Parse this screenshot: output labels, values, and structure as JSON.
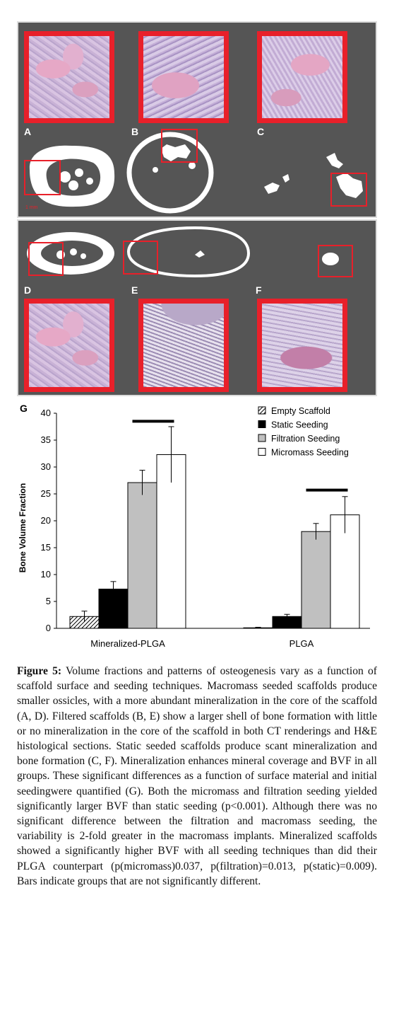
{
  "panels": {
    "letters": [
      "A",
      "B",
      "C",
      "D",
      "E",
      "F"
    ],
    "scale_text": "1 mm"
  },
  "chart_data": {
    "type": "bar",
    "panel_label": "G",
    "categories": [
      "Mineralized-PLGA",
      "PLGA"
    ],
    "ylabel": "Bone Volume Fraction",
    "xlabel": "",
    "ylim": [
      0,
      40
    ],
    "yticks": [
      0,
      5,
      10,
      15,
      20,
      25,
      30,
      35,
      40
    ],
    "grid": false,
    "legend_position": "top-right",
    "series": [
      {
        "name": "Empty Scaffold",
        "values": [
          2.2,
          0.1
        ],
        "errors": [
          1.0,
          0.1
        ],
        "fill": "hatched"
      },
      {
        "name": "Static Seeding",
        "values": [
          7.3,
          2.2
        ],
        "errors": [
          1.4,
          0.4
        ],
        "fill": "#000000"
      },
      {
        "name": "Filtration Seeding",
        "values": [
          27.1,
          18.0
        ],
        "errors": [
          2.3,
          1.5
        ],
        "fill": "#c0c0c0"
      },
      {
        "name": "Micromass Seeding",
        "values": [
          32.3,
          21.1
        ],
        "errors": [
          5.2,
          3.4
        ],
        "fill": "#ffffff"
      }
    ],
    "significance_bars": [
      {
        "category": "Mineralized-PLGA",
        "from_series": 2,
        "to_series": 3,
        "level": 38.5
      },
      {
        "category": "PLGA",
        "from_series": 2,
        "to_series": 3,
        "level": 25.7
      }
    ]
  },
  "caption": {
    "label": "Figure 5:",
    "text": "Volume fractions and patterns of osteogenesis vary as a function of scaffold surface and seeding techniques. Macromass seeded scaffolds produce smaller ossicles, with a more abundant mineralization in the core of the scaffold (A, D). Filtered scaffolds (B, E) show a larger shell of bone formation with little or no mineralization in the core of the scaffold in both CT renderings and H&E histological sections. Static seeded scaffolds produce scant mineralization and bone formation (C, F). Mineralization enhances mineral coverage and BVF in all groups. These significant differences as a function of surface material and initial seedingwere quantified (G). Both the micromass and filtration seeding yielded significantly larger BVF than static seeding (p<0.001). Although there was no significant difference between the filtration and macromass seeding, the variability is 2-fold greater in the macromass implants. Mineralized scaffolds showed a significantly higher BVF with all seeding techniques than did their PLGA counterpart (p(micromass)0.037, p(filtration)=0.013, p(static)=0.009). Bars indicate groups that are not significantly different."
  }
}
